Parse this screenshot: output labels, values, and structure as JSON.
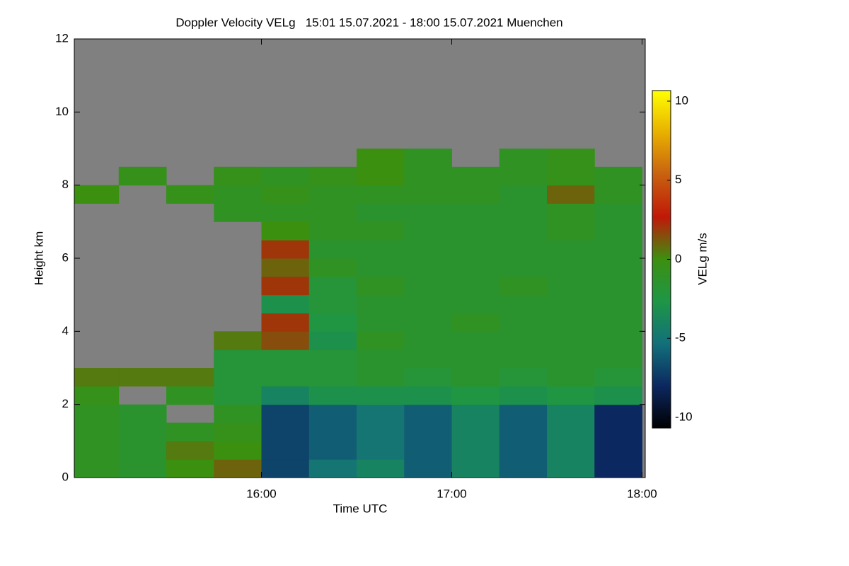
{
  "chart_data": {
    "type": "heatmap",
    "title": "Doppler Velocity VELg   15:01 15.07.2021 - 18:00 15.07.2021 Muenchen",
    "x_label": "Time UTC",
    "y_label": "Height km",
    "colorbar_label": "VELg m/s",
    "x": [
      15.125,
      15.375,
      15.625,
      15.875,
      16.125,
      16.375,
      16.625,
      16.875,
      17.125,
      17.375,
      17.625,
      17.875
    ],
    "y": [
      0.25,
      0.75,
      1.25,
      1.75,
      2.25,
      2.75,
      3.25,
      3.75,
      4.25,
      4.75,
      5.25,
      5.75,
      6.25,
      6.75,
      7.25,
      7.75,
      8.25,
      8.75
    ],
    "z": [
      [
        -1,
        -1.5,
        0,
        1,
        -7,
        -5,
        -4,
        -6,
        -4,
        -6,
        -4,
        -8
      ],
      [
        -1,
        -1.5,
        0.5,
        0,
        -7,
        -6,
        -5,
        -6,
        -4,
        -6,
        -4,
        -8
      ],
      [
        -1,
        -1.5,
        -1,
        -0.5,
        -7,
        -6,
        -5,
        -6,
        -4,
        -6,
        -4,
        -8
      ],
      [
        -1,
        -1.5,
        null,
        -1,
        -7,
        -6,
        -5,
        -6,
        -4,
        -6,
        -4,
        -8
      ],
      [
        -0.5,
        null,
        -1,
        -2,
        -4,
        -3,
        -3,
        -3,
        -2.5,
        -3,
        -2.5,
        -3
      ],
      [
        0.5,
        0.5,
        0.5,
        -2,
        -2,
        -2,
        -1.5,
        -2,
        -1.5,
        -2,
        -1.5,
        -2
      ],
      [
        null,
        null,
        null,
        -2,
        -2,
        -2,
        -1.5,
        -1.5,
        -1.5,
        -1.5,
        -1.5,
        -1.5
      ],
      [
        null,
        null,
        null,
        0.5,
        1.5,
        -3,
        -1,
        -1.5,
        -1.5,
        -1.5,
        -1.5,
        -1.5
      ],
      [
        null,
        null,
        null,
        null,
        2,
        -2.5,
        -1.5,
        -1.5,
        -1,
        -1.5,
        -1.5,
        -1.5
      ],
      [
        null,
        null,
        null,
        null,
        -3,
        -2,
        -1.5,
        -1.5,
        -1.5,
        -1.5,
        -1.5,
        -1.5
      ],
      [
        null,
        null,
        null,
        null,
        2,
        -2,
        -1,
        -1.5,
        -1.5,
        -1,
        -1.5,
        -1.5
      ],
      [
        null,
        null,
        null,
        null,
        1,
        -1,
        -1.5,
        -1.5,
        -1.5,
        -1.5,
        -1.5,
        -1.5
      ],
      [
        null,
        null,
        null,
        null,
        2,
        -1.5,
        -1.5,
        -1.5,
        -1.5,
        -1.5,
        -1.5,
        -1.5
      ],
      [
        null,
        null,
        null,
        null,
        0,
        -1,
        -1,
        -1.5,
        -1.5,
        -1.5,
        -1,
        -1.5
      ],
      [
        null,
        null,
        null,
        -1,
        -1,
        -1,
        -1.5,
        -1.5,
        -1.5,
        -1.5,
        -1,
        -1.5
      ],
      [
        0,
        null,
        -0.5,
        -1,
        -0.5,
        -1,
        -1,
        -1,
        -1,
        -1.5,
        1,
        -1
      ],
      [
        null,
        -0.5,
        null,
        -0.5,
        -1,
        -0.5,
        0,
        -1,
        -1,
        -1,
        -0.5,
        -1
      ],
      [
        null,
        null,
        null,
        null,
        null,
        null,
        0,
        -1,
        null,
        -1,
        -0.5,
        null
      ]
    ],
    "xlim": [
      15.0167,
      18.0167
    ],
    "xticks": [
      {
        "value": 16,
        "label": "16:00"
      },
      {
        "value": 17,
        "label": "17:00"
      },
      {
        "value": 18,
        "label": "18:00"
      }
    ],
    "ylim": [
      0,
      12
    ],
    "yticks": [
      0,
      2,
      4,
      6,
      8,
      10,
      12
    ],
    "clim": [
      -10.67,
      10.67
    ],
    "cticks": [
      -10,
      -5,
      0,
      5,
      10
    ],
    "colormap": [
      "#000000",
      "#0c2860",
      "#12707a",
      "#1e9646",
      "#3c9010",
      "#c01808",
      "#c86010",
      "#e8b000",
      "#ffff00"
    ],
    "missing_color": "#808080"
  }
}
